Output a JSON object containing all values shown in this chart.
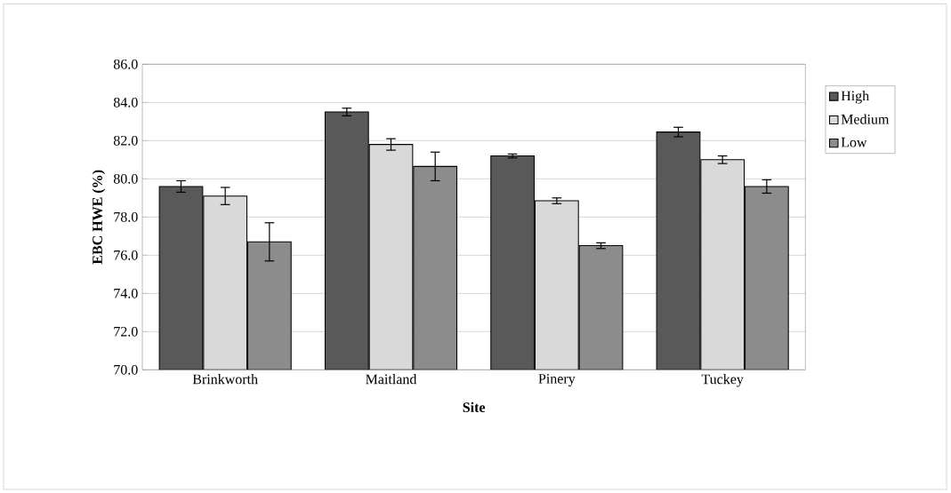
{
  "chart_data": {
    "type": "bar",
    "xlabel": "Site",
    "ylabel": "EBC HWE (%)",
    "categories": [
      "Brinkworth",
      "Maitland",
      "Pinery",
      "Tuckey"
    ],
    "series": [
      {
        "name": "High",
        "color": "#595959",
        "values": [
          79.6,
          83.5,
          81.2,
          82.45
        ],
        "errors": [
          0.3,
          0.2,
          0.1,
          0.25
        ]
      },
      {
        "name": "Medium",
        "color": "#d9d9d9",
        "values": [
          79.1,
          81.8,
          78.85,
          81.0
        ],
        "errors": [
          0.45,
          0.3,
          0.15,
          0.2
        ]
      },
      {
        "name": "Low",
        "color": "#8c8c8c",
        "values": [
          76.7,
          80.65,
          76.5,
          79.6
        ],
        "errors": [
          1.0,
          0.75,
          0.15,
          0.35
        ]
      }
    ],
    "ylim": [
      70,
      86
    ],
    "yticks": [
      {
        "value": 70,
        "label": "70.0"
      },
      {
        "value": 72,
        "label": "72.0"
      },
      {
        "value": 74,
        "label": "74.0"
      },
      {
        "value": 76,
        "label": "76.0"
      },
      {
        "value": 78,
        "label": "78.0"
      },
      {
        "value": 80,
        "label": "80.0"
      },
      {
        "value": 82,
        "label": "82.0"
      },
      {
        "value": 84,
        "label": "84.0"
      },
      {
        "value": 86,
        "label": "86.0"
      }
    ],
    "grid": "y",
    "legend": "right"
  }
}
